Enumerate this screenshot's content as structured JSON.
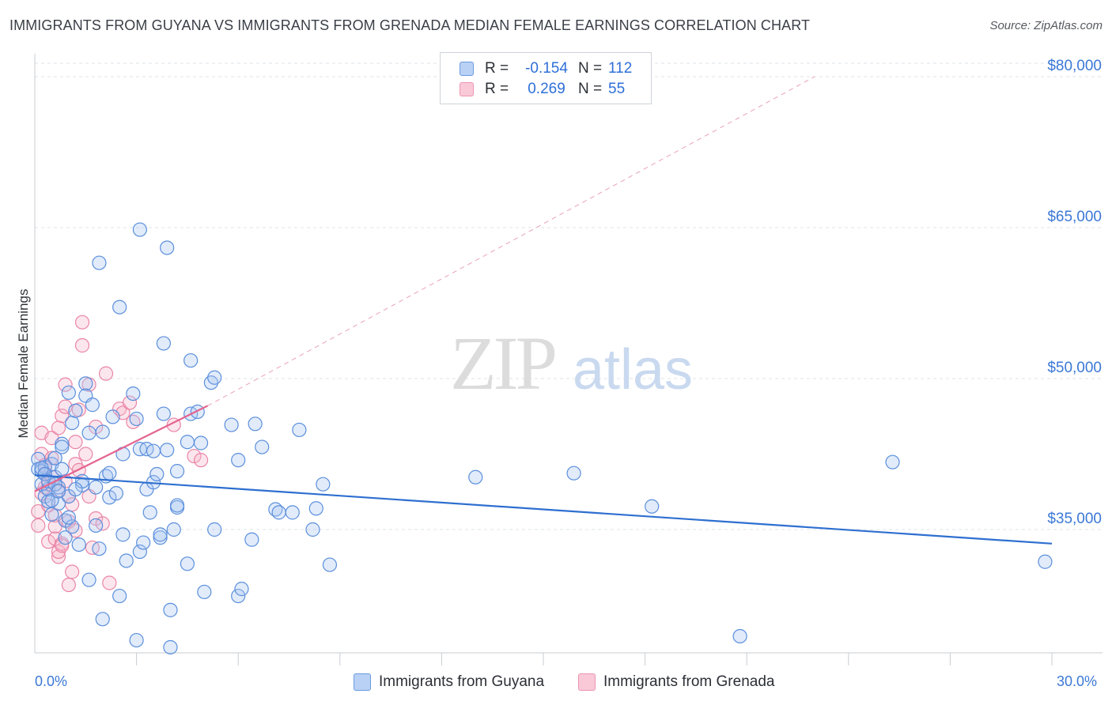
{
  "title": "IMMIGRANTS FROM GUYANA VS IMMIGRANTS FROM GRENADA MEDIAN FEMALE EARNINGS CORRELATION CHART",
  "source": "Source: ZipAtlas.com",
  "watermark": {
    "zip": "ZIP",
    "atlas": "atlas"
  },
  "legend_top": {
    "rows": [
      {
        "r_label": "R =",
        "r_value": "-0.154",
        "n_label": "N =",
        "n_value": "112"
      },
      {
        "r_label": "R =",
        "r_value": "0.269",
        "n_label": "N =",
        "n_value": "55"
      }
    ]
  },
  "colors": {
    "guyana_fill": "#a9c6f2",
    "guyana_stroke": "#5b8fdc",
    "guyana_line": "#2e6fd0",
    "grenada_fill": "#f7b8cc",
    "grenada_stroke": "#ea85a6",
    "grenada_line": "#e46590",
    "axis_text": "#3b78d6",
    "grid": "#dfe3e8"
  },
  "chart_data": {
    "type": "scatter",
    "title": "IMMIGRANTS FROM GUYANA VS IMMIGRANTS FROM GRENADA MEDIAN FEMALE EARNINGS CORRELATION CHART",
    "xlabel": "",
    "ylabel": "Median Female Earnings",
    "xlim": [
      0,
      30
    ],
    "ylim": [
      21000,
      85000
    ],
    "x_tick_labels": [
      "0.0%",
      "30.0%"
    ],
    "y_ticks": [
      35000,
      50000,
      65000,
      80000
    ],
    "y_tick_labels": [
      "$35,000",
      "$50,000",
      "$65,000",
      "$80,000"
    ],
    "legend": [
      "Immigrants from Guyana",
      "Immigrants from Grenada"
    ],
    "series": [
      {
        "name": "Immigrants from Guyana",
        "R": -0.154,
        "N": 112,
        "trend": {
          "x": [
            0,
            30
          ],
          "y": [
            40400,
            33600
          ]
        },
        "points": [
          [
            0.1,
            42000
          ],
          [
            0.1,
            41000
          ],
          [
            0.2,
            39500
          ],
          [
            0.2,
            40800
          ],
          [
            0.3,
            41200
          ],
          [
            0.3,
            38300
          ],
          [
            0.4,
            37800
          ],
          [
            0.4,
            39000
          ],
          [
            0.5,
            41500
          ],
          [
            0.5,
            36500
          ],
          [
            0.6,
            40200
          ],
          [
            0.6,
            42100
          ],
          [
            0.7,
            39200
          ],
          [
            0.7,
            37600
          ],
          [
            0.8,
            43500
          ],
          [
            0.8,
            43200
          ],
          [
            0.9,
            35900
          ],
          [
            0.9,
            34200
          ],
          [
            1.0,
            48600
          ],
          [
            1.0,
            38300
          ],
          [
            1.1,
            45600
          ],
          [
            1.1,
            35300
          ],
          [
            1.2,
            46800
          ],
          [
            1.3,
            33500
          ],
          [
            1.4,
            39400
          ],
          [
            1.4,
            39800
          ],
          [
            1.5,
            49500
          ],
          [
            1.5,
            48300
          ],
          [
            1.6,
            44600
          ],
          [
            1.6,
            30000
          ],
          [
            1.7,
            47400
          ],
          [
            1.8,
            35400
          ],
          [
            1.9,
            33100
          ],
          [
            2.0,
            26100
          ],
          [
            2.0,
            44700
          ],
          [
            2.1,
            40300
          ],
          [
            2.2,
            38200
          ],
          [
            2.2,
            40600
          ],
          [
            2.3,
            46200
          ],
          [
            2.4,
            38600
          ],
          [
            2.5,
            57100
          ],
          [
            2.5,
            28400
          ],
          [
            2.6,
            34500
          ],
          [
            2.7,
            31900
          ],
          [
            2.9,
            48500
          ],
          [
            3.0,
            46000
          ],
          [
            3.0,
            24000
          ],
          [
            3.1,
            32800
          ],
          [
            3.1,
            43000
          ],
          [
            3.2,
            33700
          ],
          [
            3.3,
            43000
          ],
          [
            3.3,
            39000
          ],
          [
            3.4,
            36700
          ],
          [
            3.5,
            42800
          ],
          [
            3.5,
            39700
          ],
          [
            3.6,
            40500
          ],
          [
            3.7,
            34200
          ],
          [
            3.7,
            34500
          ],
          [
            3.8,
            46500
          ],
          [
            3.8,
            53500
          ],
          [
            3.9,
            42900
          ],
          [
            4.0,
            23300
          ],
          [
            4.0,
            27000
          ],
          [
            4.1,
            35000
          ],
          [
            4.2,
            37200
          ],
          [
            4.2,
            37400
          ],
          [
            4.2,
            40800
          ],
          [
            4.5,
            31600
          ],
          [
            4.5,
            43700
          ],
          [
            4.6,
            51800
          ],
          [
            4.6,
            46500
          ],
          [
            4.8,
            46700
          ],
          [
            4.9,
            43600
          ],
          [
            5.0,
            28800
          ],
          [
            5.2,
            49600
          ],
          [
            5.3,
            35000
          ],
          [
            5.3,
            50100
          ],
          [
            5.8,
            45400
          ],
          [
            6.0,
            28400
          ],
          [
            6.0,
            41900
          ],
          [
            6.1,
            29100
          ],
          [
            6.4,
            34000
          ],
          [
            6.5,
            45500
          ],
          [
            6.7,
            43200
          ],
          [
            7.1,
            37000
          ],
          [
            7.2,
            36700
          ],
          [
            7.6,
            36700
          ],
          [
            7.8,
            44900
          ],
          [
            8.2,
            35000
          ],
          [
            8.3,
            37100
          ],
          [
            8.5,
            39500
          ],
          [
            8.7,
            31500
          ],
          [
            3.9,
            63000
          ],
          [
            1.9,
            61500
          ],
          [
            3.1,
            64800
          ],
          [
            13.0,
            40200
          ],
          [
            15.9,
            40600
          ],
          [
            18.2,
            37300
          ],
          [
            20.8,
            24400
          ],
          [
            25.3,
            41700
          ],
          [
            29.8,
            31800
          ],
          [
            0.2,
            41100
          ],
          [
            0.3,
            40500
          ],
          [
            0.4,
            39800
          ],
          [
            0.5,
            37900
          ],
          [
            0.6,
            39500
          ],
          [
            0.7,
            38800
          ],
          [
            0.8,
            41000
          ],
          [
            1.0,
            36200
          ],
          [
            1.2,
            39000
          ],
          [
            1.8,
            39200
          ],
          [
            2.6,
            42500
          ]
        ]
      },
      {
        "name": "Immigrants from Grenada",
        "R": 0.269,
        "N": 55,
        "trend": {
          "x": [
            0,
            5.1
          ],
          "y": [
            38800,
            47300
          ]
        },
        "trend_extension": {
          "x": [
            5.1,
            23
          ],
          "y": [
            47300,
            80000
          ]
        },
        "points": [
          [
            0.1,
            36800
          ],
          [
            0.1,
            35400
          ],
          [
            0.2,
            38600
          ],
          [
            0.2,
            42500
          ],
          [
            0.2,
            44600
          ],
          [
            0.3,
            39200
          ],
          [
            0.3,
            40600
          ],
          [
            0.4,
            37400
          ],
          [
            0.4,
            33800
          ],
          [
            0.5,
            44100
          ],
          [
            0.5,
            42100
          ],
          [
            0.6,
            36400
          ],
          [
            0.6,
            35300
          ],
          [
            0.6,
            34100
          ],
          [
            0.7,
            32300
          ],
          [
            0.7,
            32800
          ],
          [
            0.7,
            45100
          ],
          [
            0.8,
            33600
          ],
          [
            0.8,
            33400
          ],
          [
            0.8,
            46300
          ],
          [
            0.9,
            47200
          ],
          [
            0.9,
            49400
          ],
          [
            1.0,
            38300
          ],
          [
            1.0,
            35800
          ],
          [
            1.0,
            29500
          ],
          [
            1.1,
            30800
          ],
          [
            1.2,
            43700
          ],
          [
            1.2,
            41500
          ],
          [
            1.3,
            46900
          ],
          [
            1.3,
            40900
          ],
          [
            1.4,
            55600
          ],
          [
            1.4,
            53300
          ],
          [
            1.5,
            42500
          ],
          [
            1.6,
            38300
          ],
          [
            1.6,
            49400
          ],
          [
            1.7,
            33200
          ],
          [
            1.8,
            36100
          ],
          [
            1.8,
            45200
          ],
          [
            2.0,
            35600
          ],
          [
            2.1,
            50500
          ],
          [
            2.2,
            29700
          ],
          [
            2.5,
            47000
          ],
          [
            2.6,
            46600
          ],
          [
            2.8,
            47600
          ],
          [
            2.9,
            45700
          ],
          [
            4.1,
            45400
          ],
          [
            4.7,
            42300
          ],
          [
            4.9,
            41900
          ],
          [
            0.3,
            41400
          ],
          [
            0.4,
            39500
          ],
          [
            0.5,
            40200
          ],
          [
            0.7,
            38900
          ],
          [
            0.9,
            39800
          ],
          [
            1.1,
            37500
          ],
          [
            1.2,
            34900
          ]
        ]
      }
    ]
  }
}
